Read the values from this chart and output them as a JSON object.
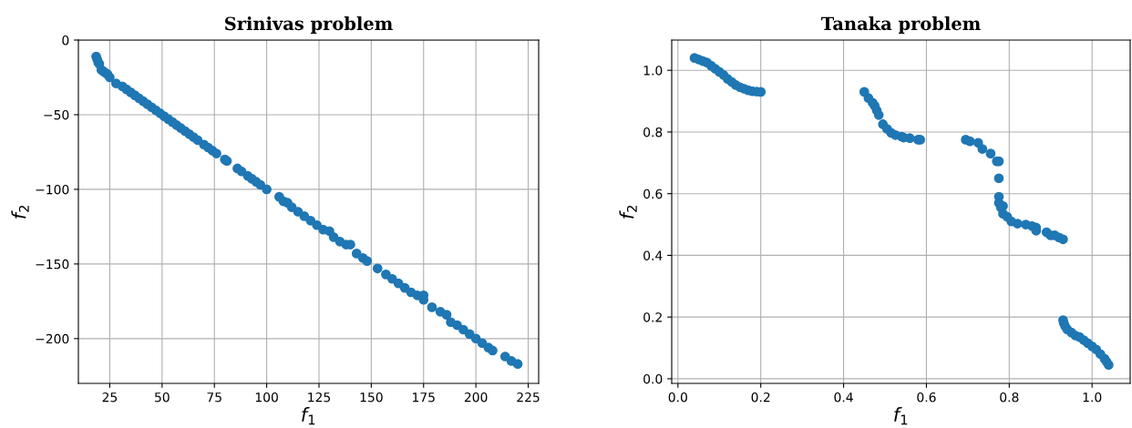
{
  "chart_data": [
    {
      "type": "scatter",
      "title": "Srinivas problem",
      "xlabel": "f$_{1}$",
      "ylabel": "f$_{2}$",
      "grid": true,
      "marker": "circle",
      "xlim": [
        10,
        230
      ],
      "ylim": [
        -230,
        0
      ],
      "xticks": [
        25,
        50,
        75,
        100,
        125,
        150,
        175,
        200,
        225
      ],
      "yticks": [
        {
          "value": -200,
          "label": "−200"
        },
        {
          "value": -150,
          "label": "−150"
        },
        {
          "value": -100,
          "label": "−100"
        },
        {
          "value": -50,
          "label": "−50"
        },
        0
      ],
      "series": [
        {
          "color": "#1f77b4",
          "x": [
            18.5,
            19,
            19.5,
            20,
            21,
            22,
            23,
            24,
            25,
            28,
            31,
            33,
            35,
            37,
            39,
            41,
            43,
            45,
            47,
            49,
            51,
            53,
            55,
            57,
            59,
            61,
            63,
            65,
            67,
            70,
            72,
            74,
            76,
            80,
            81,
            86,
            88,
            91,
            93,
            95,
            97,
            100,
            106,
            108,
            110,
            112,
            115,
            118,
            121,
            124,
            127,
            130,
            132,
            135,
            138,
            140,
            143,
            146,
            148,
            153,
            157,
            160,
            163,
            166,
            169,
            172,
            175,
            175,
            179,
            183,
            186,
            188,
            191,
            194,
            197,
            200,
            203,
            206,
            208,
            214,
            217,
            220
          ],
          "values": [
            -11,
            -13,
            -15,
            -16,
            -20,
            -21,
            -22,
            -23,
            -25,
            -29,
            -31,
            -33,
            -35,
            -37,
            -39,
            -41,
            -43,
            -45,
            -47,
            -49,
            -51,
            -53,
            -55,
            -57,
            -59,
            -61,
            -63,
            -65,
            -67,
            -70,
            -72,
            -74,
            -76,
            -80,
            -81,
            -86,
            -88,
            -91,
            -93,
            -95,
            -97,
            -100,
            -105,
            -108,
            -109,
            -112,
            -115,
            -118,
            -121,
            -124,
            -127,
            -128,
            -132,
            -135,
            -137,
            -137,
            -143,
            -146,
            -148,
            -153,
            -157,
            -160,
            -163,
            -166,
            -169,
            -171,
            -171,
            -174,
            -179,
            -182,
            -184,
            -189,
            -191,
            -194,
            -197,
            -200,
            -203,
            -206,
            -208,
            -212,
            -215,
            -217
          ]
        }
      ]
    },
    {
      "type": "scatter",
      "title": "Tanaka problem",
      "xlabel": "f$_{1}$",
      "ylabel": "f$_{2}$",
      "grid": true,
      "marker": "circle",
      "xlim": [
        -0.015,
        1.092
      ],
      "ylim": [
        -0.015,
        1.098
      ],
      "xticks": [
        {
          "value": 0,
          "label": "0.0"
        },
        {
          "value": 0.2,
          "label": "0.2"
        },
        {
          "value": 0.4,
          "label": "0.4"
        },
        {
          "value": 0.6,
          "label": "0.6"
        },
        {
          "value": 0.8,
          "label": "0.8"
        },
        {
          "value": 1.0,
          "label": "1.0"
        }
      ],
      "yticks": [
        {
          "value": 0,
          "label": "0.0"
        },
        {
          "value": 0.2,
          "label": "0.2"
        },
        {
          "value": 0.4,
          "label": "0.4"
        },
        {
          "value": 0.6,
          "label": "0.6"
        },
        {
          "value": 0.8,
          "label": "0.8"
        },
        {
          "value": 1.0,
          "label": "1.0"
        }
      ],
      "series": [
        {
          "color": "#1f77b4",
          "x": [
            0.04,
            0.05,
            0.06,
            0.07,
            0.08,
            0.09,
            0.1,
            0.11,
            0.12,
            0.13,
            0.14,
            0.15,
            0.16,
            0.17,
            0.18,
            0.19,
            0.2,
            0.45,
            0.46,
            0.47,
            0.475,
            0.48,
            0.485,
            0.495,
            0.505,
            0.515,
            0.525,
            0.54,
            0.545,
            0.56,
            0.58,
            0.585,
            0.695,
            0.705,
            0.725,
            0.735,
            0.755,
            0.77,
            0.775,
            0.775,
            0.775,
            0.775,
            0.785,
            0.78,
            0.785,
            0.795,
            0.805,
            0.82,
            0.84,
            0.855,
            0.865,
            0.865,
            0.89,
            0.9,
            0.91,
            0.92,
            0.93,
            0.93,
            0.932,
            0.935,
            0.94,
            0.95,
            0.96,
            0.97,
            0.98,
            0.99,
            1.0,
            1.01,
            1.02,
            1.03,
            1.035,
            1.04
          ],
          "values": [
            1.04,
            1.035,
            1.03,
            1.025,
            1.015,
            1.005,
            0.995,
            0.985,
            0.972,
            0.962,
            0.952,
            0.945,
            0.94,
            0.935,
            0.932,
            0.931,
            0.93,
            0.93,
            0.91,
            0.895,
            0.885,
            0.87,
            0.855,
            0.825,
            0.81,
            0.797,
            0.79,
            0.785,
            0.782,
            0.78,
            0.775,
            0.775,
            0.775,
            0.77,
            0.765,
            0.745,
            0.73,
            0.705,
            0.705,
            0.65,
            0.59,
            0.57,
            0.56,
            0.555,
            0.535,
            0.525,
            0.51,
            0.503,
            0.5,
            0.495,
            0.49,
            0.48,
            0.475,
            0.465,
            0.465,
            0.458,
            0.452,
            0.19,
            0.18,
            0.17,
            0.16,
            0.15,
            0.14,
            0.135,
            0.125,
            0.115,
            0.105,
            0.095,
            0.08,
            0.065,
            0.055,
            0.045
          ]
        }
      ]
    }
  ]
}
